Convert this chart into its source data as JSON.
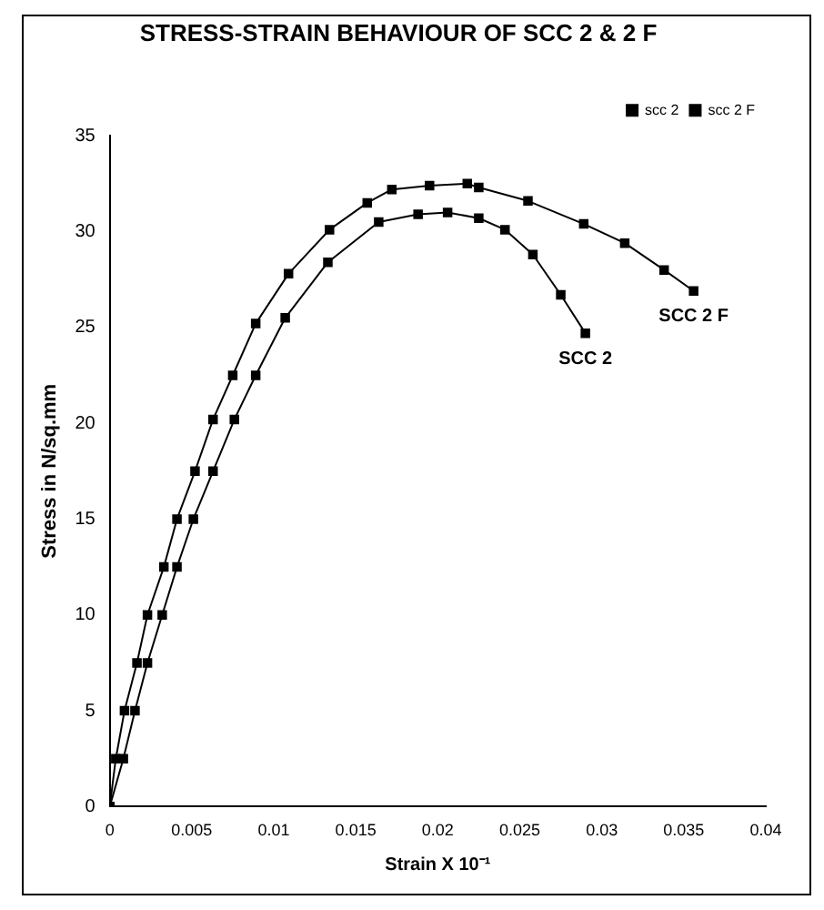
{
  "chart_data": {
    "type": "line",
    "title": "STRESS-STRAIN BEHAVIOUR OF SCC 2 & 2 F",
    "xlabel": "Strain X 10⁻¹",
    "ylabel": "Stress in N/sq.mm",
    "series": [
      {
        "name": "scc 2",
        "color": "#000000",
        "x": [
          0,
          0.00083,
          0.00154,
          0.0023,
          0.0032,
          0.0041,
          0.0051,
          0.0063,
          0.0076,
          0.0089,
          0.0107,
          0.0133,
          0.0164,
          0.0188,
          0.0206,
          0.0225,
          0.0241,
          0.0258,
          0.0275,
          0.029
        ],
        "values": [
          0,
          2.5,
          5,
          7.5,
          10,
          12.5,
          15,
          17.5,
          20.2,
          22.5,
          25.5,
          28.4,
          30.5,
          30.9,
          31.0,
          30.7,
          30.1,
          28.8,
          26.7,
          24.7
        ]
      },
      {
        "name": "scc 2 F",
        "color": "#000000",
        "x": [
          0,
          0.00037,
          0.0009,
          0.00166,
          0.0023,
          0.0033,
          0.0041,
          0.0052,
          0.0063,
          0.0075,
          0.0089,
          0.0109,
          0.0134,
          0.0157,
          0.0172,
          0.0195,
          0.0218,
          0.0225,
          0.0255,
          0.0289,
          0.0314,
          0.0338,
          0.0356
        ],
        "values": [
          0,
          2.5,
          5,
          7.5,
          10,
          12.5,
          15,
          17.5,
          20.2,
          22.5,
          25.2,
          27.8,
          30.1,
          31.5,
          32.2,
          32.4,
          32.5,
          32.3,
          31.6,
          30.4,
          29.4,
          28.0,
          26.9
        ]
      }
    ],
    "annotations": [
      {
        "text": "SCC 2",
        "x": 0.029,
        "y": 24.7
      },
      {
        "text": "SCC 2 F",
        "x": 0.0356,
        "y": 26.9
      }
    ],
    "xlim": [
      0,
      0.04
    ],
    "xticks": [
      0,
      0.005,
      0.01,
      0.015,
      0.02,
      0.025,
      0.03,
      0.035,
      0.04
    ],
    "ylim": [
      0,
      35
    ],
    "yticks": [
      0,
      5,
      10,
      15,
      20,
      25,
      30,
      35
    ],
    "grid": false,
    "legend": "top right",
    "marker": "square",
    "line_style": "solid"
  }
}
